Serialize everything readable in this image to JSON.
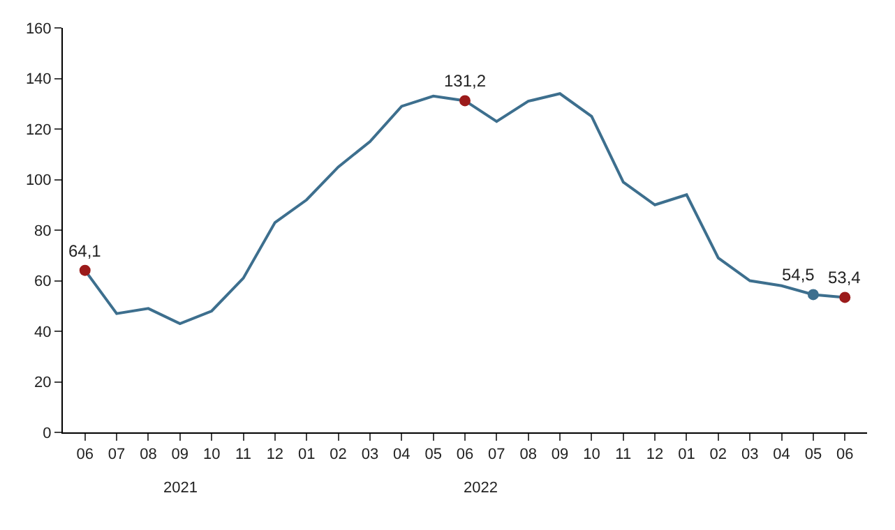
{
  "chart_data": {
    "type": "line",
    "categories": [
      "06",
      "07",
      "08",
      "09",
      "10",
      "11",
      "12",
      "01",
      "02",
      "03",
      "04",
      "05",
      "06",
      "07",
      "08",
      "09",
      "10",
      "11",
      "12",
      "01",
      "02",
      "03",
      "04",
      "05",
      "06"
    ],
    "series": [
      {
        "color": "#3d6f8e",
        "values": [
          64.1,
          47,
          49,
          43,
          48,
          61,
          83,
          92,
          105,
          115,
          129,
          133,
          131.2,
          123,
          131,
          134,
          125,
          99,
          90,
          94,
          69,
          60,
          58,
          54.5,
          53.4
        ],
        "value_labels": [
          "64,1",
          null,
          null,
          null,
          null,
          null,
          null,
          null,
          null,
          null,
          null,
          null,
          "131,2",
          null,
          null,
          null,
          null,
          null,
          null,
          null,
          null,
          null,
          null,
          "54,5",
          "53,4"
        ],
        "colors": [
          "#9b1b1b",
          null,
          null,
          null,
          null,
          null,
          null,
          null,
          null,
          null,
          null,
          null,
          "#9b1b1b",
          null,
          null,
          null,
          null,
          null,
          null,
          null,
          null,
          null,
          null,
          "#3d6f8e",
          "#9b1b1b"
        ]
      }
    ],
    "ylim": [
      0,
      160
    ],
    "yticks": [
      0,
      20,
      40,
      60,
      80,
      100,
      120,
      140,
      160
    ],
    "line_style": "solid",
    "annotations": [
      "2021",
      "2022"
    ]
  }
}
